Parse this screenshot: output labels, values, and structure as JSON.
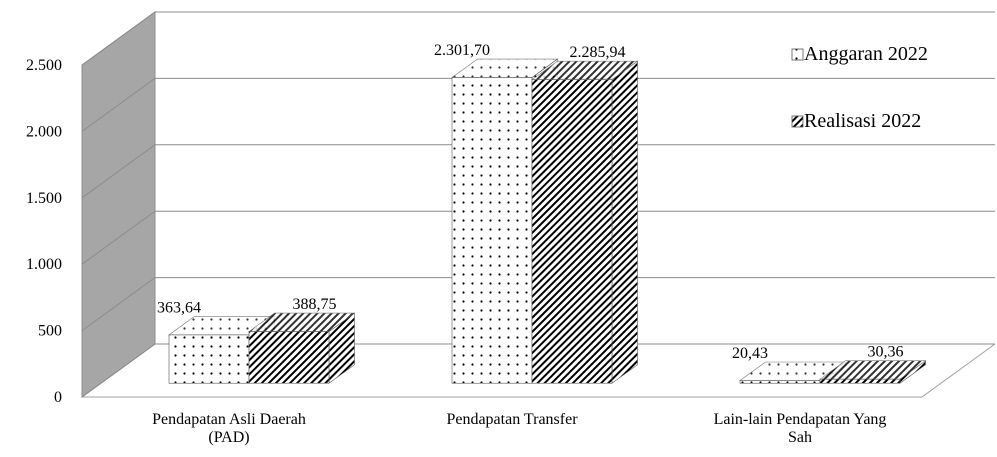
{
  "chart_data": {
    "type": "bar3d",
    "categories": [
      "Pendapatan Asli Daerah (PAD)",
      "Pendapatan Transfer",
      "Lain-lain Pendapatan Yang Sah"
    ],
    "series": [
      {
        "name": "Anggaran 2022",
        "pattern": "dots",
        "color": "#000000",
        "values": [
          363.64,
          2301.7,
          20.43
        ],
        "value_labels": [
          "363,64",
          "2.301,70",
          "20,43"
        ]
      },
      {
        "name": "Realisasi 2022",
        "pattern": "hatch",
        "color": "#000000",
        "values": [
          388.75,
          2285.94,
          30.36
        ],
        "value_labels": [
          "388,75",
          "2.285,94",
          "30,36"
        ]
      }
    ],
    "ylim": [
      0,
      2500
    ],
    "yticks": [
      0,
      500,
      {
        "value": 1000,
        "label": "1.000"
      },
      {
        "value": 1500,
        "label": "1.500"
      },
      {
        "value": 2000,
        "label": "2.000"
      },
      {
        "value": 2500,
        "label": "2.500"
      }
    ],
    "grid": true,
    "legend": "top-right"
  }
}
